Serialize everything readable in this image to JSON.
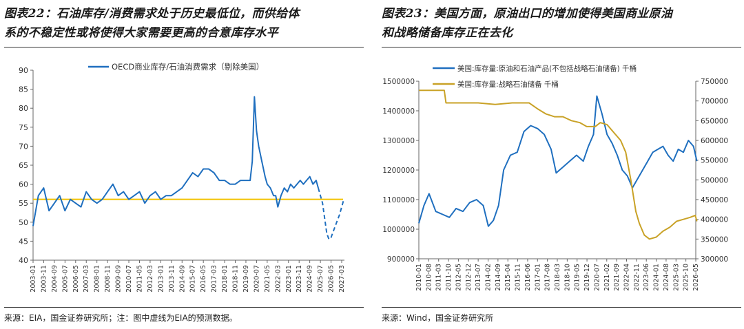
{
  "left": {
    "title_line1": "图表22：石油库存/消费需求处于历史最低位，而供给体",
    "title_line2": "系的不稳定性或将使得大家需要更高的合意库存水平",
    "source": "来源：EIA，国金证券研究所；注：图中虚线为EIA的预测数据。"
  },
  "right": {
    "title_line1": "图表23：美国方面，原油出口的增加使得美国商业原油",
    "title_line2": "和战略储备库存正在去化",
    "source": "来源：Wind，国金证券研究所"
  },
  "colors": {
    "blue": "#1f6fbf",
    "gold": "#c9a227",
    "yellow": "#f2c200",
    "axis": "#666666"
  },
  "chart_data": [
    {
      "type": "line",
      "legend": [
        "OECD商业库存/石油消费需求（剔除美国）"
      ],
      "legend_position": "top",
      "ylim": [
        40,
        90
      ],
      "yticks": [
        40,
        45,
        50,
        55,
        60,
        65,
        70,
        75,
        80,
        85,
        90
      ],
      "x_tick_labels": [
        "2003-01",
        "2003-11",
        "2004-09",
        "2005-07",
        "2006-05",
        "2007-03",
        "2008-01",
        "2008-11",
        "2009-09",
        "2010-07",
        "2011-05",
        "2012-03",
        "2013-01",
        "2013-11",
        "2014-09",
        "2015-07",
        "2016-05",
        "2017-03",
        "2018-01",
        "2018-11",
        "2019-09",
        "2020-07",
        "2021-05",
        "2022-03",
        "2023-01",
        "2023-11",
        "2024-09",
        "2025-07",
        "2026-05",
        "2027-03"
      ],
      "grid": false,
      "reference_line": {
        "value": 56,
        "color": "#f2c200"
      },
      "series": [
        {
          "name": "OECD商业库存/石油消费需求（剔除美国）",
          "style": "solid",
          "x": [
            "2003-01",
            "2003-06",
            "2003-11",
            "2004-04",
            "2004-09",
            "2005-02",
            "2005-07",
            "2005-12",
            "2006-05",
            "2006-10",
            "2007-03",
            "2007-08",
            "2008-01",
            "2008-06",
            "2008-11",
            "2009-04",
            "2009-09",
            "2010-02",
            "2010-07",
            "2010-12",
            "2011-05",
            "2011-10",
            "2012-03",
            "2012-08",
            "2013-01",
            "2013-06",
            "2013-11",
            "2014-04",
            "2014-09",
            "2015-02",
            "2015-07",
            "2015-12",
            "2016-05",
            "2016-10",
            "2017-03",
            "2017-08",
            "2018-01",
            "2018-06",
            "2018-11",
            "2019-04",
            "2019-09",
            "2020-01",
            "2020-03",
            "2020-05",
            "2020-07",
            "2020-09",
            "2020-12",
            "2021-03",
            "2021-05",
            "2021-08",
            "2021-11",
            "2022-01",
            "2022-03",
            "2022-06",
            "2022-09",
            "2022-12",
            "2023-03",
            "2023-06",
            "2023-09",
            "2023-12",
            "2024-03",
            "2024-06",
            "2024-09",
            "2024-12",
            "2025-03",
            "2025-05"
          ],
          "y": [
            49,
            57,
            59,
            53,
            55,
            57,
            53,
            56,
            55,
            54,
            58,
            56,
            55,
            56,
            58,
            60,
            57,
            58,
            56,
            57,
            58,
            55,
            57,
            58,
            56,
            57,
            57,
            58,
            59,
            61,
            63,
            62,
            64,
            64,
            63,
            61,
            61,
            60,
            60,
            61,
            61,
            61,
            66,
            83,
            74,
            70,
            66,
            62,
            60,
            59,
            57,
            57,
            54,
            57,
            59,
            58,
            60,
            59,
            60,
            61,
            60,
            61,
            62,
            60,
            61,
            59
          ]
        },
        {
          "name": "EIA预测",
          "style": "dashed",
          "x": [
            "2025-05",
            "2025-09",
            "2026-01",
            "2026-03",
            "2026-05",
            "2026-09",
            "2027-01",
            "2027-05"
          ],
          "y": [
            59,
            55,
            47,
            45.5,
            46,
            49,
            52,
            56
          ]
        }
      ]
    },
    {
      "type": "line",
      "legend": [
        "美国:库存量:原油和石油产品(不包括战略石油储备) 千桶",
        "美国:库存量:战略石油储备 千桶"
      ],
      "legend_position": "top-left",
      "ylim_left": [
        900000,
        1500000
      ],
      "yticks_left": [
        900000,
        1000000,
        1100000,
        1200000,
        1300000,
        1400000,
        1500000
      ],
      "ylim_right": [
        300000,
        750000
      ],
      "yticks_right": [
        300000,
        350000,
        400000,
        450000,
        500000,
        550000,
        600000,
        650000,
        700000,
        750000
      ],
      "x_tick_labels": [
        "2010-01",
        "2010-08",
        "2011-03",
        "2011-10",
        "2012-05",
        "2012-12",
        "2013-07",
        "2014-02",
        "2014-09",
        "2015-04",
        "2015-11",
        "2016-06",
        "2017-01",
        "2017-08",
        "2018-03",
        "2018-10",
        "2019-05",
        "2019-12",
        "2020-07",
        "2021-02",
        "2021-09",
        "2022-04",
        "2022-11",
        "2023-06",
        "2024-01",
        "2024-08",
        "2025-03",
        "2025-10",
        "2026-05"
      ],
      "grid": false,
      "series": [
        {
          "name": "美国:库存量:原油和石油产品(不包括战略石油储备) 千桶",
          "axis": "left",
          "x": [
            2010.0,
            2010.3,
            2010.6,
            2011.0,
            2011.4,
            2011.8,
            2012.2,
            2012.6,
            2013.0,
            2013.4,
            2013.8,
            2014.1,
            2014.4,
            2014.7,
            2015.0,
            2015.4,
            2015.8,
            2016.2,
            2016.6,
            2017.0,
            2017.4,
            2017.8,
            2018.1,
            2018.5,
            2018.9,
            2019.3,
            2019.7,
            2020.0,
            2020.3,
            2020.5,
            2020.8,
            2021.1,
            2021.4,
            2021.7,
            2022.0,
            2022.3,
            2022.6,
            2022.9,
            2023.2,
            2023.5,
            2023.8,
            2024.1,
            2024.4,
            2024.7,
            2025.0,
            2025.3,
            2025.6,
            2025.9,
            2026.2,
            2026.4
          ],
          "y": [
            1020000,
            1080000,
            1120000,
            1060000,
            1050000,
            1040000,
            1070000,
            1060000,
            1090000,
            1100000,
            1080000,
            1010000,
            1030000,
            1080000,
            1200000,
            1250000,
            1260000,
            1330000,
            1350000,
            1340000,
            1320000,
            1270000,
            1190000,
            1210000,
            1230000,
            1250000,
            1230000,
            1280000,
            1320000,
            1450000,
            1390000,
            1320000,
            1290000,
            1250000,
            1200000,
            1180000,
            1140000,
            1170000,
            1200000,
            1230000,
            1260000,
            1270000,
            1280000,
            1250000,
            1230000,
            1270000,
            1260000,
            1300000,
            1280000,
            1230000
          ]
        },
        {
          "name": "美国:库存量:战略石油储备 千桶",
          "axis": "right",
          "x": [
            2010.0,
            2011.0,
            2011.5,
            2011.6,
            2012.5,
            2013.5,
            2014.5,
            2015.5,
            2016.5,
            2017.0,
            2017.5,
            2018.0,
            2018.5,
            2019.0,
            2019.5,
            2019.9,
            2020.4,
            2020.7,
            2021.1,
            2021.5,
            2021.9,
            2022.2,
            2022.5,
            2022.8,
            2023.0,
            2023.3,
            2023.6,
            2024.0,
            2024.4,
            2024.8,
            2025.2,
            2025.6,
            2026.0,
            2026.3,
            2026.4
          ],
          "y": [
            727000,
            727000,
            727000,
            695000,
            695000,
            695000,
            691000,
            695000,
            695000,
            680000,
            667000,
            660000,
            660000,
            650000,
            645000,
            635000,
            635000,
            645000,
            640000,
            620000,
            600000,
            570000,
            500000,
            420000,
            390000,
            360000,
            350000,
            355000,
            370000,
            380000,
            395000,
            400000,
            405000,
            410000,
            395000
          ]
        }
      ]
    }
  ]
}
